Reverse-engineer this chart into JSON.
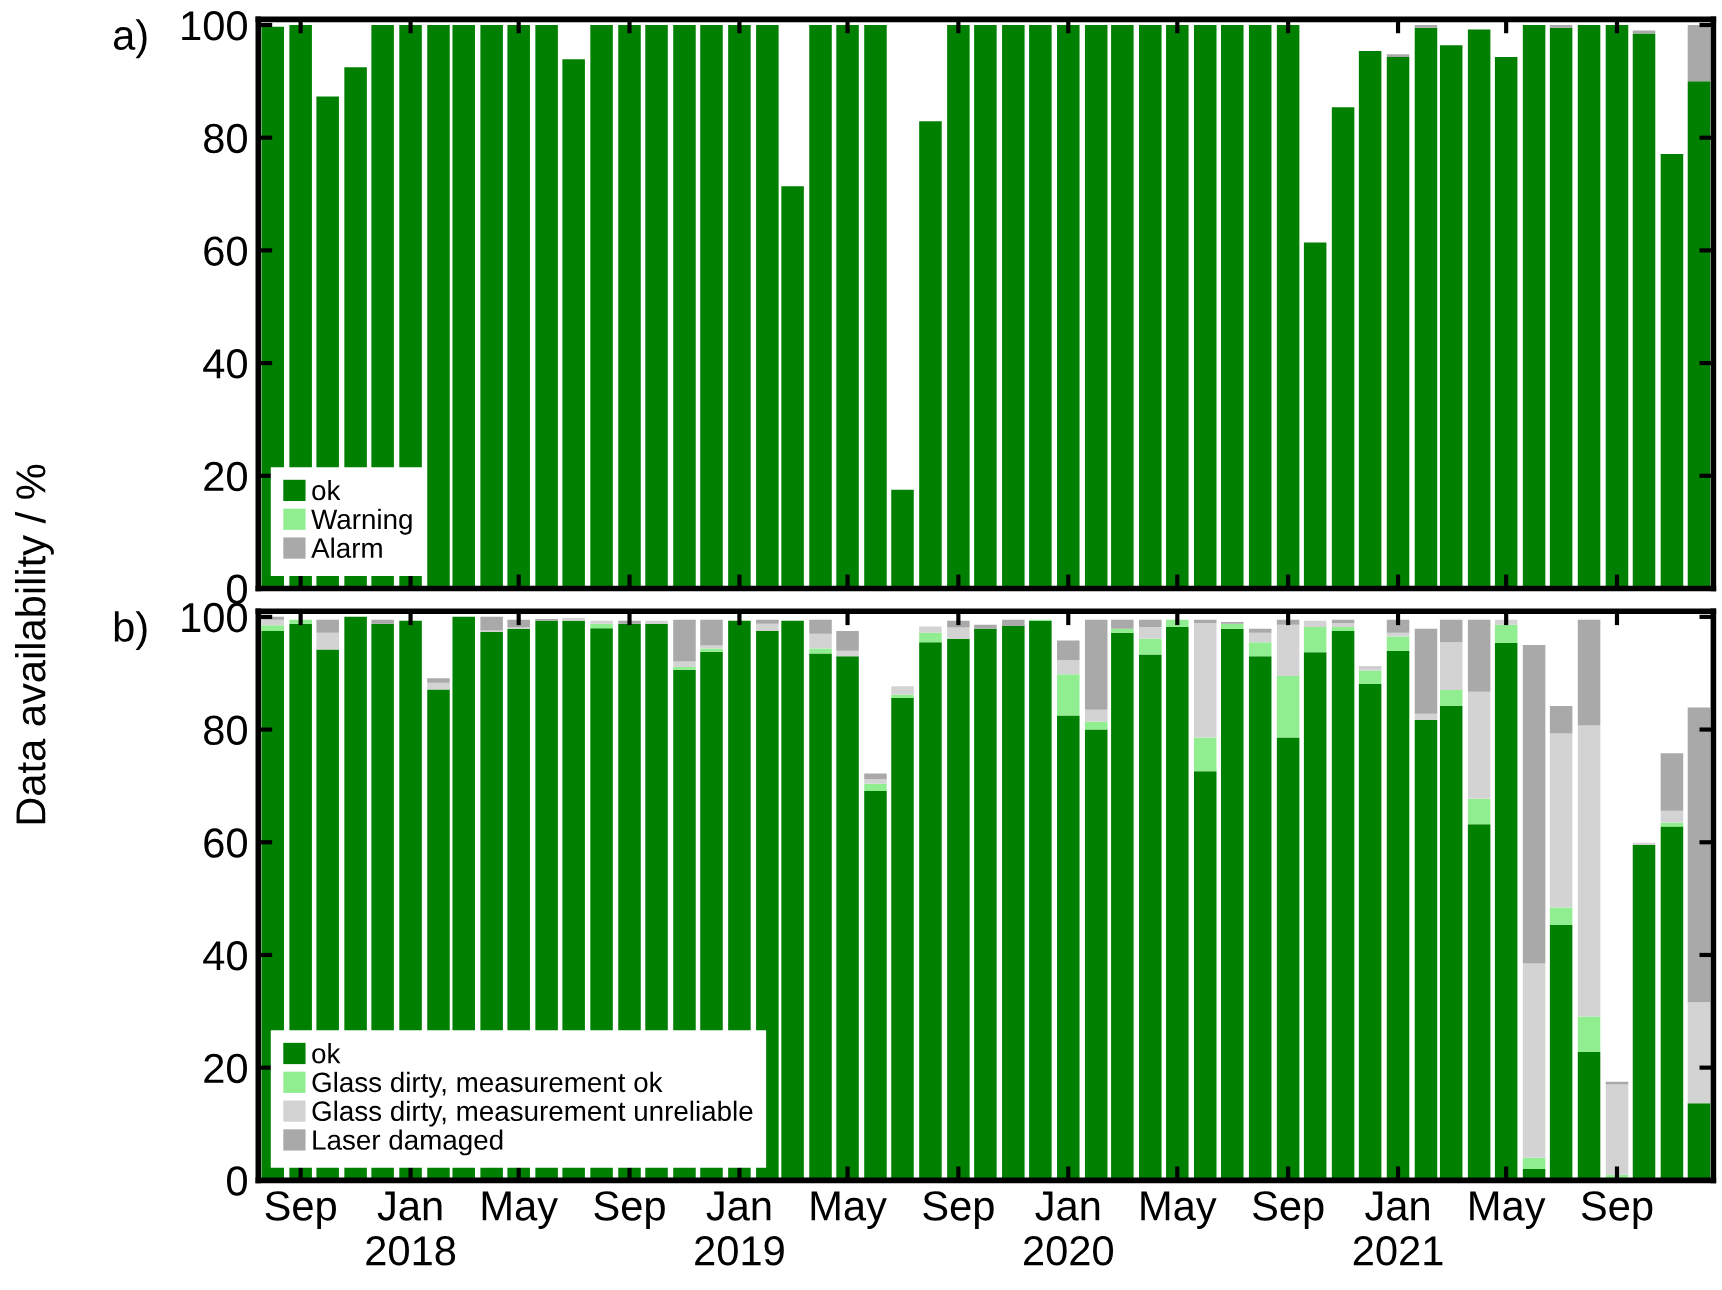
{
  "chart_data": [
    {
      "type": "bar",
      "title": "a)",
      "ylabel": "Data availability / %",
      "stacked": true,
      "legend": "bottom left",
      "tick_labels": "y",
      "grid": false,
      "x": [
        "2017-08",
        "2017-09",
        "2017-10",
        "2017-11",
        "2017-12",
        "2018-01",
        "2018-02",
        "2018-03",
        "2018-04",
        "2018-05",
        "2018-06",
        "2018-07",
        "2018-08",
        "2018-09",
        "2018-10",
        "2018-11",
        "2018-12",
        "2019-01",
        "2019-02",
        "2019-03",
        "2019-04",
        "2019-05",
        "2019-06",
        "2019-07",
        "2019-08",
        "2019-09",
        "2019-10",
        "2019-11",
        "2019-12",
        "2020-01",
        "2020-02",
        "2020-03",
        "2020-04",
        "2020-05",
        "2020-06",
        "2020-07",
        "2020-08",
        "2020-09",
        "2020-10",
        "2020-11",
        "2020-12",
        "2021-01",
        "2021-02",
        "2021-03",
        "2021-04",
        "2021-05",
        "2021-06",
        "2021-07",
        "2021-08",
        "2021-09",
        "2021-10",
        "2021-11",
        "2021-12"
      ],
      "xlim": [
        "2017-07-16",
        "2021-12-17"
      ],
      "xticks": [
        {
          "value": "2017-09",
          "label": null
        },
        {
          "value": "2018-01",
          "label": null
        },
        {
          "value": "2018-05",
          "label": null
        },
        {
          "value": "2018-09",
          "label": null
        },
        {
          "value": "2019-01",
          "label": null
        },
        {
          "value": "2019-05",
          "label": null
        },
        {
          "value": "2019-09",
          "label": null
        },
        {
          "value": "2020-01",
          "label": null
        },
        {
          "value": "2020-05",
          "label": null
        },
        {
          "value": "2020-09",
          "label": null
        },
        {
          "value": "2021-01",
          "label": null
        },
        {
          "value": "2021-05",
          "label": null
        },
        {
          "value": "2021-09",
          "label": null
        }
      ],
      "ylim": [
        0,
        101
      ],
      "yticks": [
        0,
        20,
        40,
        60,
        80,
        100
      ],
      "series": [
        {
          "name": "ok",
          "color": "#008000",
          "values": [
            99.7,
            100,
            87.3,
            92.5,
            100,
            100,
            100,
            100,
            100,
            100,
            100,
            93.9,
            100,
            100,
            100,
            100,
            100,
            100,
            100,
            71.4,
            100,
            100,
            100,
            17.5,
            82.9,
            100,
            100,
            100,
            100,
            100,
            100,
            100,
            100,
            100,
            100,
            100,
            100,
            100,
            61.4,
            85.4,
            95.4,
            94.3,
            99.5,
            96.4,
            99.2,
            94.3,
            100,
            99.5,
            100,
            100,
            98.5,
            77.1,
            90
          ]
        },
        {
          "name": "Warning",
          "color": "#90ee90",
          "values": [
            0,
            0,
            0,
            0,
            0,
            0,
            0,
            0,
            0,
            0,
            0,
            0,
            0,
            0,
            0,
            0,
            0,
            0,
            0,
            0,
            0,
            0,
            0,
            0,
            0,
            0,
            0,
            0,
            0,
            0,
            0,
            0,
            0,
            0,
            0,
            0,
            0,
            0,
            0,
            0,
            0,
            0,
            0,
            0,
            0,
            0,
            0,
            0,
            0,
            0,
            0,
            0,
            0
          ]
        },
        {
          "name": "Alarm",
          "color": "#a9a9a9",
          "values": [
            0,
            0,
            0,
            0,
            0,
            0,
            0,
            0,
            0,
            0,
            0,
            0,
            0,
            0,
            0,
            0,
            0,
            0,
            0,
            0,
            0,
            0,
            0,
            0,
            0,
            0,
            0,
            0,
            0,
            0,
            0,
            0,
            0,
            0,
            0,
            0,
            0,
            0,
            0,
            0,
            0,
            0.5,
            0.5,
            0,
            0,
            0,
            0,
            0.5,
            0,
            0,
            0.5,
            0,
            10
          ]
        }
      ]
    },
    {
      "type": "bar",
      "title": "b)",
      "stacked": true,
      "legend": "bottom left",
      "grid": false,
      "x": [
        "2017-08",
        "2017-09",
        "2017-10",
        "2017-11",
        "2017-12",
        "2018-01",
        "2018-02",
        "2018-03",
        "2018-04",
        "2018-05",
        "2018-06",
        "2018-07",
        "2018-08",
        "2018-09",
        "2018-10",
        "2018-11",
        "2018-12",
        "2019-01",
        "2019-02",
        "2019-03",
        "2019-04",
        "2019-05",
        "2019-06",
        "2019-07",
        "2019-08",
        "2019-09",
        "2019-10",
        "2019-11",
        "2019-12",
        "2020-01",
        "2020-02",
        "2020-03",
        "2020-04",
        "2020-05",
        "2020-06",
        "2020-07",
        "2020-08",
        "2020-09",
        "2020-10",
        "2020-11",
        "2020-12",
        "2021-01",
        "2021-02",
        "2021-03",
        "2021-04",
        "2021-05",
        "2021-06",
        "2021-07",
        "2021-08",
        "2021-09",
        "2021-10",
        "2021-11",
        "2021-12"
      ],
      "xlim": [
        "2017-07-16",
        "2021-12-17"
      ],
      "xticks": [
        {
          "value": "2017-09",
          "label": "Sep"
        },
        {
          "value": "2018-01",
          "label": "Jan\n2018"
        },
        {
          "value": "2018-05",
          "label": "May"
        },
        {
          "value": "2018-09",
          "label": "Sep"
        },
        {
          "value": "2019-01",
          "label": "Jan\n2019"
        },
        {
          "value": "2019-05",
          "label": "May"
        },
        {
          "value": "2019-09",
          "label": "Sep"
        },
        {
          "value": "2020-01",
          "label": "Jan\n2020"
        },
        {
          "value": "2020-05",
          "label": "May"
        },
        {
          "value": "2020-09",
          "label": "Sep"
        },
        {
          "value": "2021-01",
          "label": "Jan\n2021"
        },
        {
          "value": "2021-05",
          "label": "May"
        },
        {
          "value": "2021-09",
          "label": "Sep"
        }
      ],
      "ylim": [
        0,
        101
      ],
      "yticks": [
        0,
        20,
        40,
        60,
        80,
        100
      ],
      "series": [
        {
          "name": "ok",
          "color": "#008000",
          "values": [
            97.5,
            98.8,
            94.2,
            100,
            98.8,
            99.3,
            87.1,
            100,
            97.3,
            97.9,
            99.3,
            99.3,
            98,
            98.8,
            98.8,
            90.6,
            93.8,
            99.3,
            97.5,
            99.3,
            93.5,
            93,
            69.1,
            85.6,
            95.5,
            96.1,
            97.9,
            98.4,
            99.3,
            82.5,
            80,
            97.2,
            93.3,
            98.2,
            72.6,
            97.9,
            93,
            78.6,
            93.7,
            97.5,
            88.1,
            94,
            81.7,
            84.2,
            63.2,
            95.4,
            2,
            45.3,
            22.8,
            0,
            59.5,
            62.8,
            13.7
          ]
        },
        {
          "name": "Glass dirty, measurement ok",
          "color": "#90ee90",
          "values": [
            1,
            0.7,
            0,
            0,
            0,
            0,
            0,
            0,
            0,
            0,
            0,
            0,
            0.8,
            0,
            0,
            0.5,
            0.6,
            0,
            0,
            0,
            0.9,
            0,
            1.3,
            0.6,
            1.7,
            0,
            0,
            0,
            0.2,
            7.3,
            1.4,
            0.7,
            2.8,
            1.3,
            6,
            0.9,
            2.5,
            10.9,
            4.5,
            0.7,
            2.4,
            2.5,
            0,
            2.8,
            4.5,
            3.2,
            2,
            3.1,
            6.3,
            1,
            0,
            0.7,
            0
          ]
        },
        {
          "name": "Glass dirty, measurement unreliable",
          "color": "#d3d3d3",
          "values": [
            1,
            0,
            3,
            0,
            0,
            0,
            1.2,
            0,
            0.3,
            0.2,
            0,
            0.5,
            0.5,
            0,
            0.5,
            1,
            0.5,
            0,
            1.3,
            0,
            2.6,
            1,
            0.8,
            1.5,
            1.1,
            2,
            0,
            0,
            0,
            2.5,
            2.1,
            0,
            2.1,
            0,
            20.3,
            0,
            1.7,
            9.1,
            1.1,
            0.7,
            0.5,
            0.7,
            1.1,
            8.5,
            19,
            0.9,
            34.5,
            30.9,
            51.6,
            16,
            0.4,
            2.1,
            17.9
          ]
        },
        {
          "name": "Laser damaged",
          "color": "#a9a9a9",
          "values": [
            0.5,
            0,
            2.3,
            0,
            0.7,
            0,
            0.8,
            0,
            2.4,
            1.4,
            0.3,
            0,
            0,
            0.5,
            0,
            7.4,
            4.6,
            0,
            0.7,
            0,
            2.5,
            3.5,
            1,
            0,
            0,
            1.2,
            0.7,
            1.1,
            0,
            3.5,
            16,
            1.6,
            1.3,
            0,
            0.6,
            0.3,
            0.7,
            0.9,
            0,
            0.6,
            0.2,
            2.3,
            15.1,
            4,
            12.8,
            0,
            56.5,
            4.9,
            18.8,
            0.5,
            0,
            10.2,
            52.3
          ]
        }
      ]
    }
  ]
}
